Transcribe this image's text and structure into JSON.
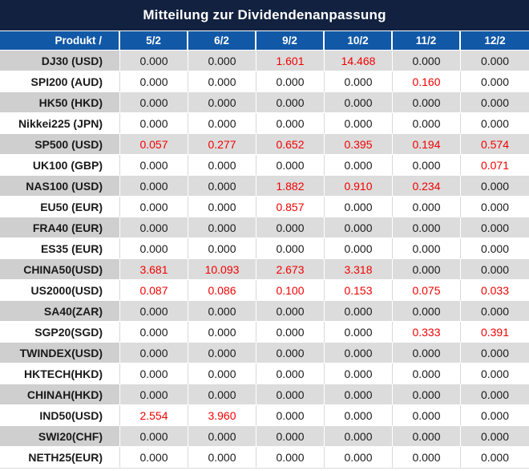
{
  "title": "Mitteilung zur Dividendenanpassung",
  "table": {
    "product_header": "Produkt /",
    "date_columns": [
      "5/2",
      "6/2",
      "9/2",
      "10/2",
      "11/2",
      "12/2"
    ],
    "rows": [
      {
        "product": "DJ30 (USD)",
        "values": [
          "0.000",
          "0.000",
          "1.601",
          "14.468",
          "0.000",
          "0.000"
        ],
        "red": [
          0,
          0,
          1,
          1,
          0,
          0
        ]
      },
      {
        "product": "SPI200 (AUD)",
        "values": [
          "0.000",
          "0.000",
          "0.000",
          "0.000",
          "0.160",
          "0.000"
        ],
        "red": [
          0,
          0,
          0,
          0,
          1,
          0
        ]
      },
      {
        "product": "HK50 (HKD)",
        "values": [
          "0.000",
          "0.000",
          "0.000",
          "0.000",
          "0.000",
          "0.000"
        ],
        "red": [
          0,
          0,
          0,
          0,
          0,
          0
        ]
      },
      {
        "product": "Nikkei225 (JPN)",
        "values": [
          "0.000",
          "0.000",
          "0.000",
          "0.000",
          "0.000",
          "0.000"
        ],
        "red": [
          0,
          0,
          0,
          0,
          0,
          0
        ]
      },
      {
        "product": "SP500 (USD)",
        "values": [
          "0.057",
          "0.277",
          "0.652",
          "0.395",
          "0.194",
          "0.574"
        ],
        "red": [
          1,
          1,
          1,
          1,
          1,
          1
        ]
      },
      {
        "product": "UK100 (GBP)",
        "values": [
          "0.000",
          "0.000",
          "0.000",
          "0.000",
          "0.000",
          "0.071"
        ],
        "red": [
          0,
          0,
          0,
          0,
          0,
          1
        ]
      },
      {
        "product": "NAS100 (USD)",
        "values": [
          "0.000",
          "0.000",
          "1.882",
          "0.910",
          "0.234",
          "0.000"
        ],
        "red": [
          0,
          0,
          1,
          1,
          1,
          0
        ]
      },
      {
        "product": "EU50 (EUR)",
        "values": [
          "0.000",
          "0.000",
          "0.857",
          "0.000",
          "0.000",
          "0.000"
        ],
        "red": [
          0,
          0,
          1,
          0,
          0,
          0
        ]
      },
      {
        "product": "FRA40 (EUR)",
        "values": [
          "0.000",
          "0.000",
          "0.000",
          "0.000",
          "0.000",
          "0.000"
        ],
        "red": [
          0,
          0,
          0,
          0,
          0,
          0
        ]
      },
      {
        "product": "ES35 (EUR)",
        "values": [
          "0.000",
          "0.000",
          "0.000",
          "0.000",
          "0.000",
          "0.000"
        ],
        "red": [
          0,
          0,
          0,
          0,
          0,
          0
        ]
      },
      {
        "product": "CHINA50(USD)",
        "values": [
          "3.681",
          "10.093",
          "2.673",
          "3.318",
          "0.000",
          "0.000"
        ],
        "red": [
          1,
          1,
          1,
          1,
          0,
          0
        ]
      },
      {
        "product": "US2000(USD)",
        "values": [
          "0.087",
          "0.086",
          "0.100",
          "0.153",
          "0.075",
          "0.033"
        ],
        "red": [
          1,
          1,
          1,
          1,
          1,
          1
        ]
      },
      {
        "product": "SA40(ZAR)",
        "values": [
          "0.000",
          "0.000",
          "0.000",
          "0.000",
          "0.000",
          "0.000"
        ],
        "red": [
          0,
          0,
          0,
          0,
          0,
          0
        ]
      },
      {
        "product": "SGP20(SGD)",
        "values": [
          "0.000",
          "0.000",
          "0.000",
          "0.000",
          "0.333",
          "0.391"
        ],
        "red": [
          0,
          0,
          0,
          0,
          1,
          1
        ]
      },
      {
        "product": "TWINDEX(USD)",
        "values": [
          "0.000",
          "0.000",
          "0.000",
          "0.000",
          "0.000",
          "0.000"
        ],
        "red": [
          0,
          0,
          0,
          0,
          0,
          0
        ]
      },
      {
        "product": "HKTECH(HKD)",
        "values": [
          "0.000",
          "0.000",
          "0.000",
          "0.000",
          "0.000",
          "0.000"
        ],
        "red": [
          0,
          0,
          0,
          0,
          0,
          0
        ]
      },
      {
        "product": "CHINAH(HKD)",
        "values": [
          "0.000",
          "0.000",
          "0.000",
          "0.000",
          "0.000",
          "0.000"
        ],
        "red": [
          0,
          0,
          0,
          0,
          0,
          0
        ]
      },
      {
        "product": "IND50(USD)",
        "values": [
          "2.554",
          "3.960",
          "0.000",
          "0.000",
          "0.000",
          "0.000"
        ],
        "red": [
          1,
          1,
          0,
          0,
          0,
          0
        ]
      },
      {
        "product": "SWI20(CHF)",
        "values": [
          "0.000",
          "0.000",
          "0.000",
          "0.000",
          "0.000",
          "0.000"
        ],
        "red": [
          0,
          0,
          0,
          0,
          0,
          0
        ]
      },
      {
        "product": "NETH25(EUR)",
        "values": [
          "0.000",
          "0.000",
          "0.000",
          "0.000",
          "0.000",
          "0.000"
        ],
        "red": [
          0,
          0,
          0,
          0,
          0,
          0
        ]
      }
    ]
  },
  "colors": {
    "title_bg": "#12213f",
    "header_bg": "#1158a7",
    "red_value": "#f20000",
    "text": "#1a1a1a",
    "row_gray": "#dcdcdc",
    "product_gray": "#cfcfcf",
    "row_white": "#ffffff",
    "divider_white": "#ffffff",
    "divider_gray": "#d9d9d9"
  }
}
